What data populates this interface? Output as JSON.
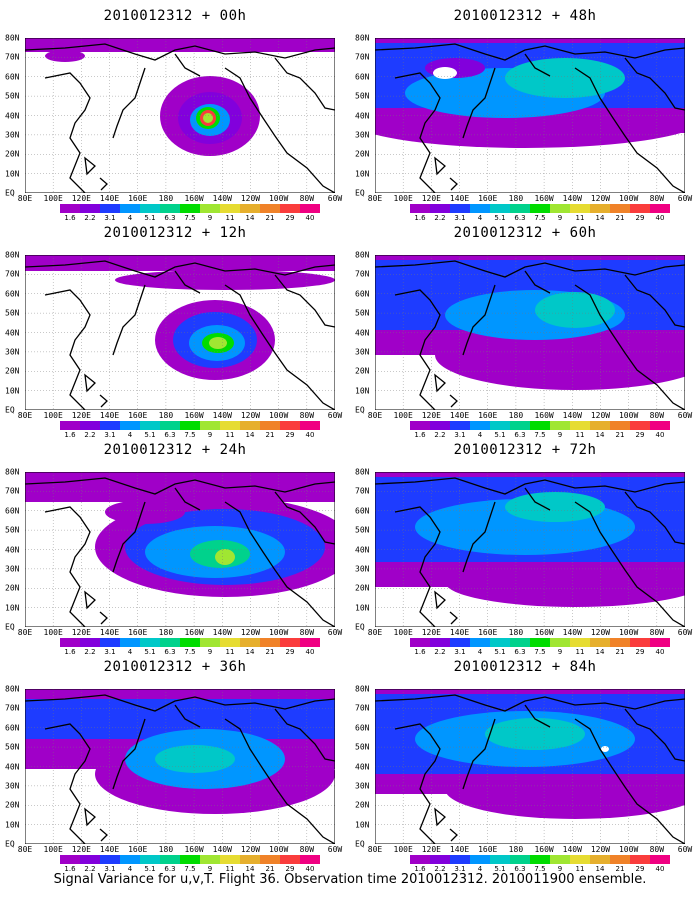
{
  "footer": "Signal Variance for u,v,T. Flight 36. Observation time 2010012312. 2010011900 ensemble.",
  "lat_labels": [
    "80N",
    "70N",
    "60N",
    "50N",
    "40N",
    "30N",
    "20N",
    "10N",
    "EQ"
  ],
  "lon_labels": [
    "80E",
    "100E",
    "120E",
    "140E",
    "160E",
    "180",
    "160W",
    "140W",
    "120W",
    "100W",
    "80W",
    "60W"
  ],
  "colorbar": {
    "labels": [
      "1.6",
      "2.2",
      "3.1",
      "4",
      "5.1",
      "6.3",
      "7.5",
      "9",
      "11",
      "14",
      "21",
      "29",
      "40"
    ],
    "colors": [
      "#a000c8",
      "#8200dc",
      "#1e3cff",
      "#0096ff",
      "#00c8c8",
      "#00d28c",
      "#00dc00",
      "#a0e632",
      "#e6dc32",
      "#e6af2d",
      "#f08228",
      "#fa3c3c",
      "#f00082"
    ]
  },
  "panels": [
    {
      "title": "2010012312 + 00h"
    },
    {
      "title": "2010012312 + 48h"
    },
    {
      "title": "2010012312 + 12h"
    },
    {
      "title": "2010012312 + 60h"
    },
    {
      "title": "2010012312 + 24h"
    },
    {
      "title": "2010012312 + 72h"
    },
    {
      "title": "2010012312 + 36h"
    },
    {
      "title": "2010012312 + 84h"
    }
  ]
}
